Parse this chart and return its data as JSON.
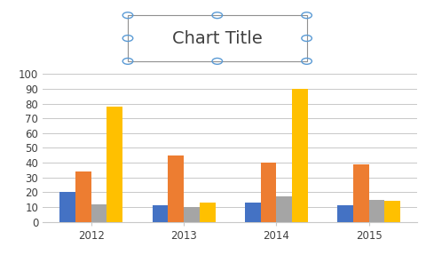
{
  "title": "Chart Title",
  "years": [
    2012,
    2013,
    2014,
    2015
  ],
  "series": {
    "Desktop Computers": [
      20,
      11,
      13,
      11
    ],
    "Laptops": [
      34,
      45,
      40,
      39
    ],
    "Monitors": [
      12,
      10,
      17,
      15
    ],
    "Printers": [
      78,
      13,
      90,
      14
    ]
  },
  "colors": {
    "Desktop Computers": "#4472C4",
    "Laptops": "#ED7D31",
    "Monitors": "#A5A5A5",
    "Printers": "#FFC000"
  },
  "ylim": [
    0,
    100
  ],
  "yticks": [
    0,
    10,
    20,
    30,
    40,
    50,
    60,
    70,
    80,
    90,
    100
  ],
  "bar_width": 0.17,
  "title_fontsize": 14,
  "tick_fontsize": 8.5,
  "legend_fontsize": 8,
  "background_color": "#FFFFFF",
  "plot_bg_color": "#FFFFFF",
  "grid_color": "#C8C8C8",
  "title_box_color": "#808080",
  "handle_color": "#5B9BD5"
}
